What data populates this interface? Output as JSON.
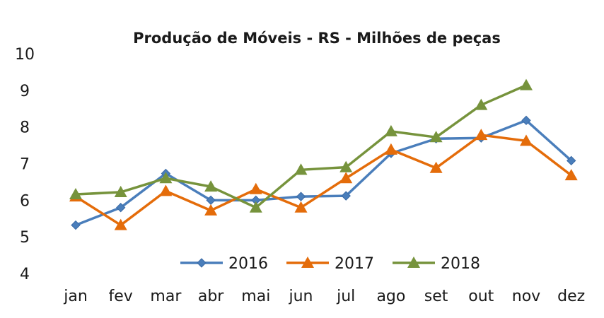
{
  "chart_data": {
    "type": "line",
    "title": "Produção de Móveis - RS - Milhões de peças",
    "xlabel": "",
    "ylabel": "",
    "categories": [
      "jan",
      "fev",
      "mar",
      "abr",
      "mai",
      "jun",
      "jul",
      "ago",
      "set",
      "out",
      "nov",
      "dez"
    ],
    "ylim": [
      4,
      10
    ],
    "yticks": [
      "4",
      "5",
      "6",
      "7",
      "8",
      "9",
      "10"
    ],
    "grid": false,
    "legend_position": "bottom-inside",
    "series": [
      {
        "name": "2016",
        "color": "#4a7ebb",
        "marker": "diamond",
        "values": [
          5.32,
          5.8,
          6.73,
          6.0,
          6.0,
          6.1,
          6.12,
          7.28,
          7.68,
          7.7,
          8.18,
          7.08
        ]
      },
      {
        "name": "2017",
        "color": "#e46c0a",
        "marker": "triangle",
        "values": [
          6.1,
          5.32,
          6.25,
          5.72,
          6.3,
          5.8,
          6.6,
          7.38,
          6.88,
          7.78,
          7.62,
          6.68
        ]
      },
      {
        "name": "2018",
        "color": "#76933c",
        "marker": "triangle",
        "values": [
          6.16,
          6.22,
          6.6,
          6.37,
          5.8,
          6.83,
          6.9,
          7.88,
          7.72,
          8.6,
          9.14,
          null
        ]
      }
    ]
  }
}
